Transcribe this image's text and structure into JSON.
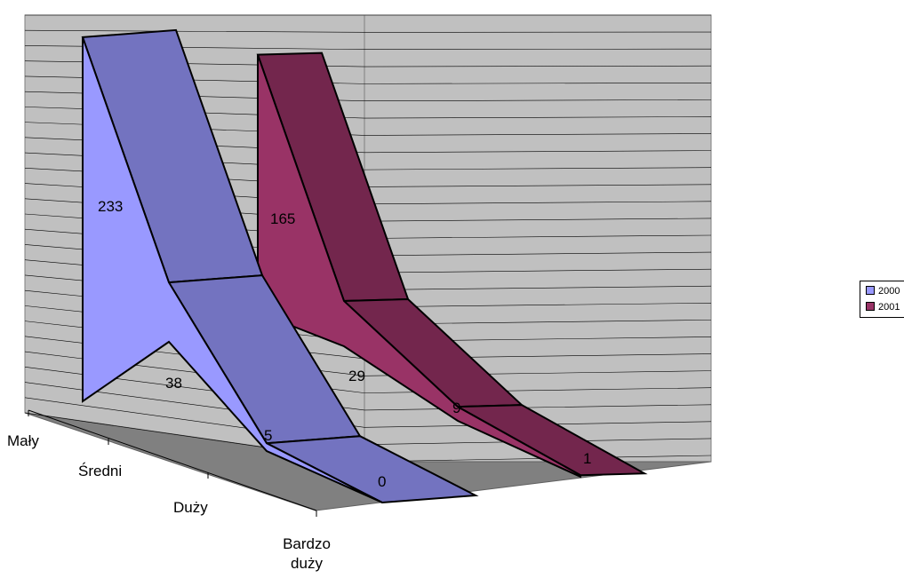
{
  "chart_data": {
    "type": "area",
    "variant": "3d-area",
    "categories": [
      "Mały",
      "Średni",
      "Duży",
      "Bardzo duży"
    ],
    "series": [
      {
        "name": "2000",
        "values": [
          233,
          38,
          5,
          0
        ],
        "color": "#9999ff",
        "side_color": "#7373c0"
      },
      {
        "name": "2001",
        "values": [
          165,
          29,
          9,
          1
        ],
        "color": "#993366",
        "side_color": "#73264d"
      }
    ],
    "data_labels": true,
    "grid": true,
    "legend_position": "right",
    "wall_color": "#c0c0c0",
    "floor_color": "#808080"
  }
}
